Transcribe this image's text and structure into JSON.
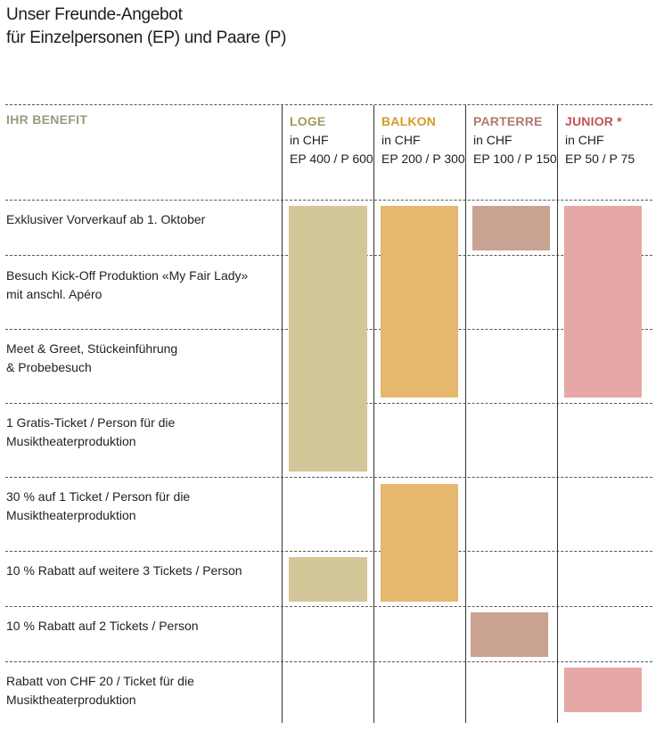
{
  "title": {
    "line1": "Unser Freunde-Angebot",
    "line2": "für Einzelpersonen (EP) und Paare (P)"
  },
  "benefit_header": "IHR BENEFIT",
  "columns": [
    {
      "name": "LOGE",
      "currency": "in CHF",
      "price": "EP 400 / P 600",
      "name_color": "#a39a55",
      "fill": "#d3c699"
    },
    {
      "name": "BALKON",
      "currency": "in CHF",
      "price": "EP 200 / P 300",
      "name_color": "#d49a2a",
      "fill": "#e6b76f"
    },
    {
      "name": "PARTERRE",
      "currency": "in CHF",
      "price": "EP 100 / P 150",
      "name_color": "#b07a70",
      "fill": "#c9a292"
    },
    {
      "name": "JUNIOR *",
      "currency": "in CHF",
      "price": "EP 50 / P 75",
      "name_color": "#c4535b",
      "fill": "#e6a8a6"
    }
  ],
  "rows": [
    {
      "line1": "Exklusiver Vorverkauf ab 1. Oktober",
      "line2": ""
    },
    {
      "line1": "Besuch Kick-Off Produktion «My Fair Lady»",
      "line2": "mit anschl. Apéro"
    },
    {
      "line1": "Meet & Greet, Stückeinführung",
      "line2": "& Probebesuch"
    },
    {
      "line1": "1 Gratis-Ticket / Person für die",
      "line2": "Musiktheaterproduktion"
    },
    {
      "line1": "30 % auf 1 Ticket / Person für die",
      "line2": "Musiktheaterproduktion"
    },
    {
      "line1": "10 % Rabatt auf weitere 3 Tickets / Person",
      "line2": ""
    },
    {
      "line1": "10 % Rabatt auf 2 Tickets / Person",
      "line2": ""
    },
    {
      "line1": "Rabatt von CHF 20 / Ticket für die",
      "line2": "Musiktheaterproduktion"
    }
  ],
  "coverage": [
    [
      true,
      true,
      true,
      true
    ],
    [
      true,
      true,
      false,
      true
    ],
    [
      true,
      true,
      false,
      true
    ],
    [
      true,
      false,
      false,
      false
    ],
    [
      false,
      true,
      false,
      false
    ],
    [
      true,
      true,
      false,
      false
    ],
    [
      false,
      false,
      true,
      false
    ],
    [
      false,
      false,
      false,
      true
    ]
  ]
}
